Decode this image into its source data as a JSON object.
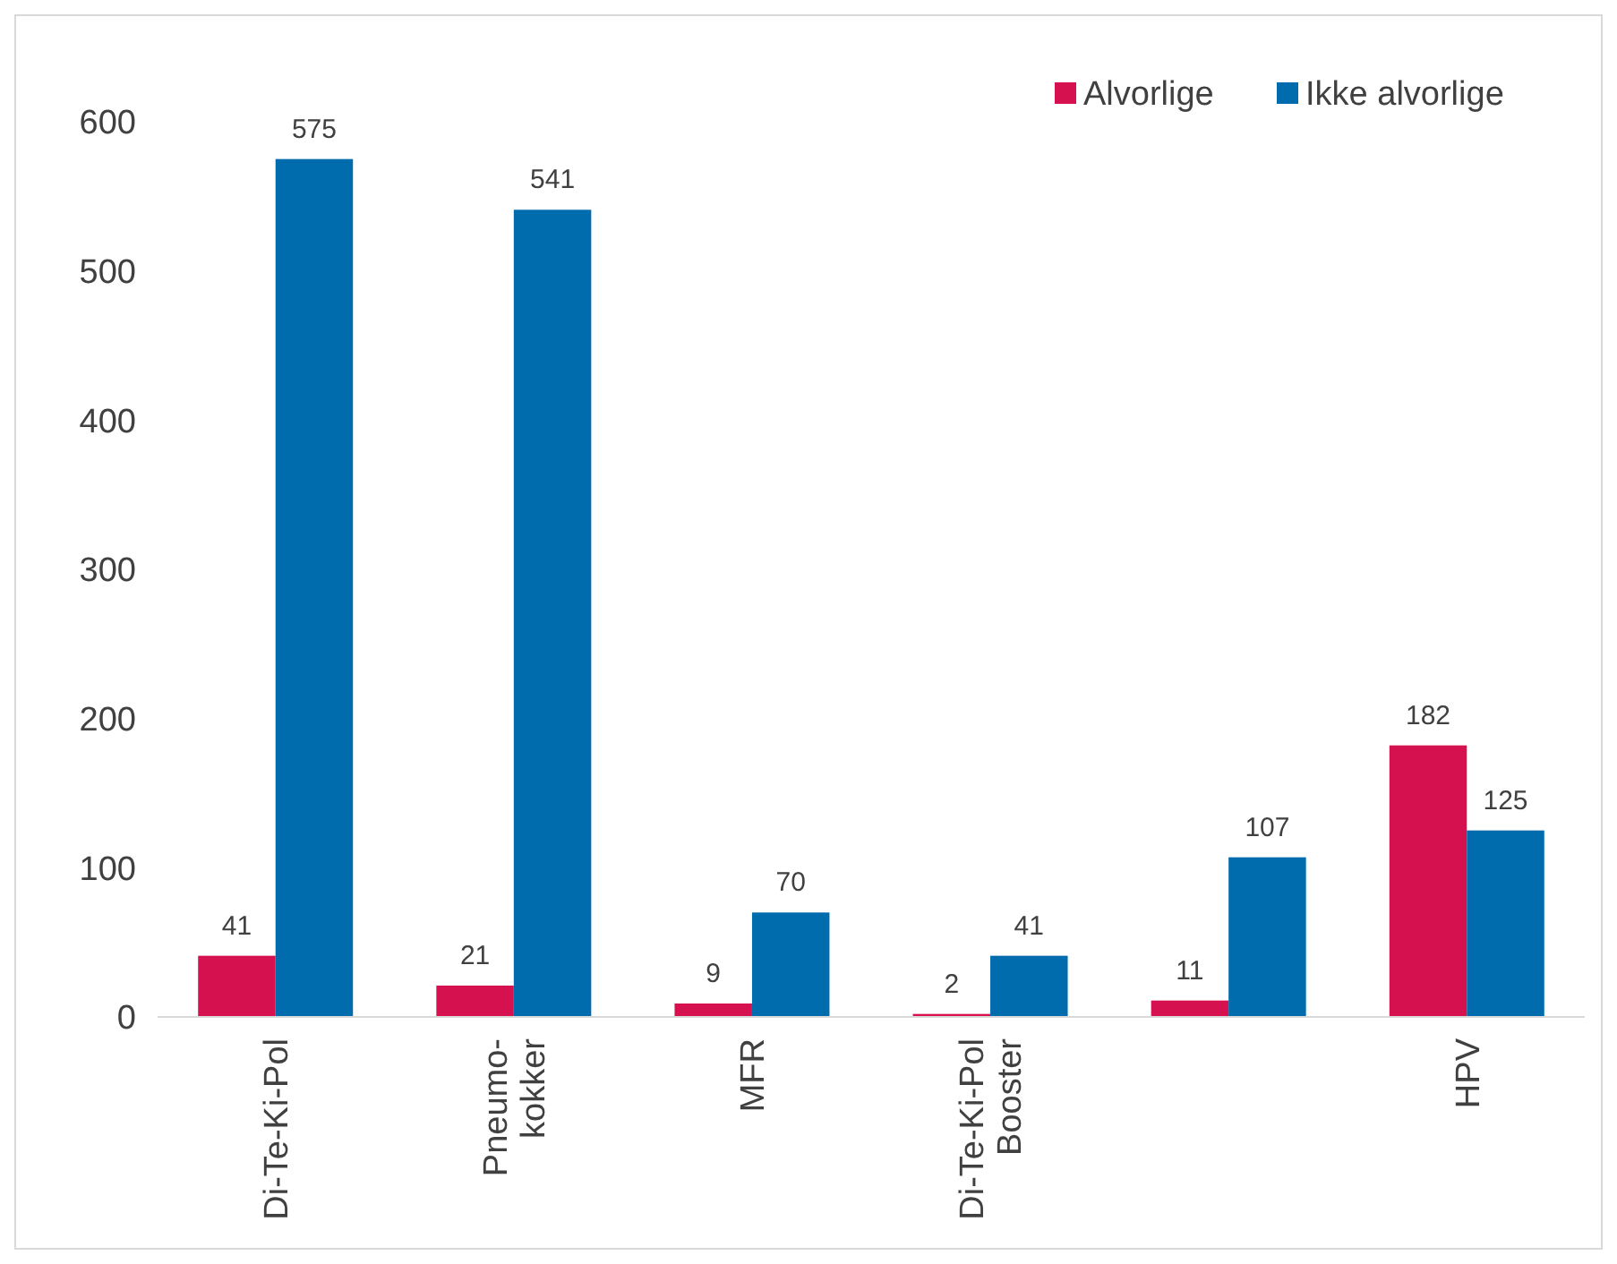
{
  "chart_data": {
    "type": "bar",
    "categories": [
      "Di-Te-Ki-Pol",
      "Pneumo-\nkokker",
      "MFR",
      "Di-Te-Ki-Pol\nBooster",
      null,
      "HPV"
    ],
    "series": [
      {
        "name": "Alvorlige",
        "color": "#d6114f",
        "values": [
          41,
          21,
          9,
          2,
          11,
          182
        ]
      },
      {
        "name": "Ikke alvorlige",
        "color": "#006bad",
        "values": [
          575,
          541,
          70,
          41,
          107,
          125
        ]
      }
    ],
    "ylim": [
      0,
      600
    ],
    "yticks": [
      0,
      100,
      200,
      300,
      400,
      500,
      600
    ],
    "grid": false,
    "legend": "top right",
    "data_labels": true
  }
}
